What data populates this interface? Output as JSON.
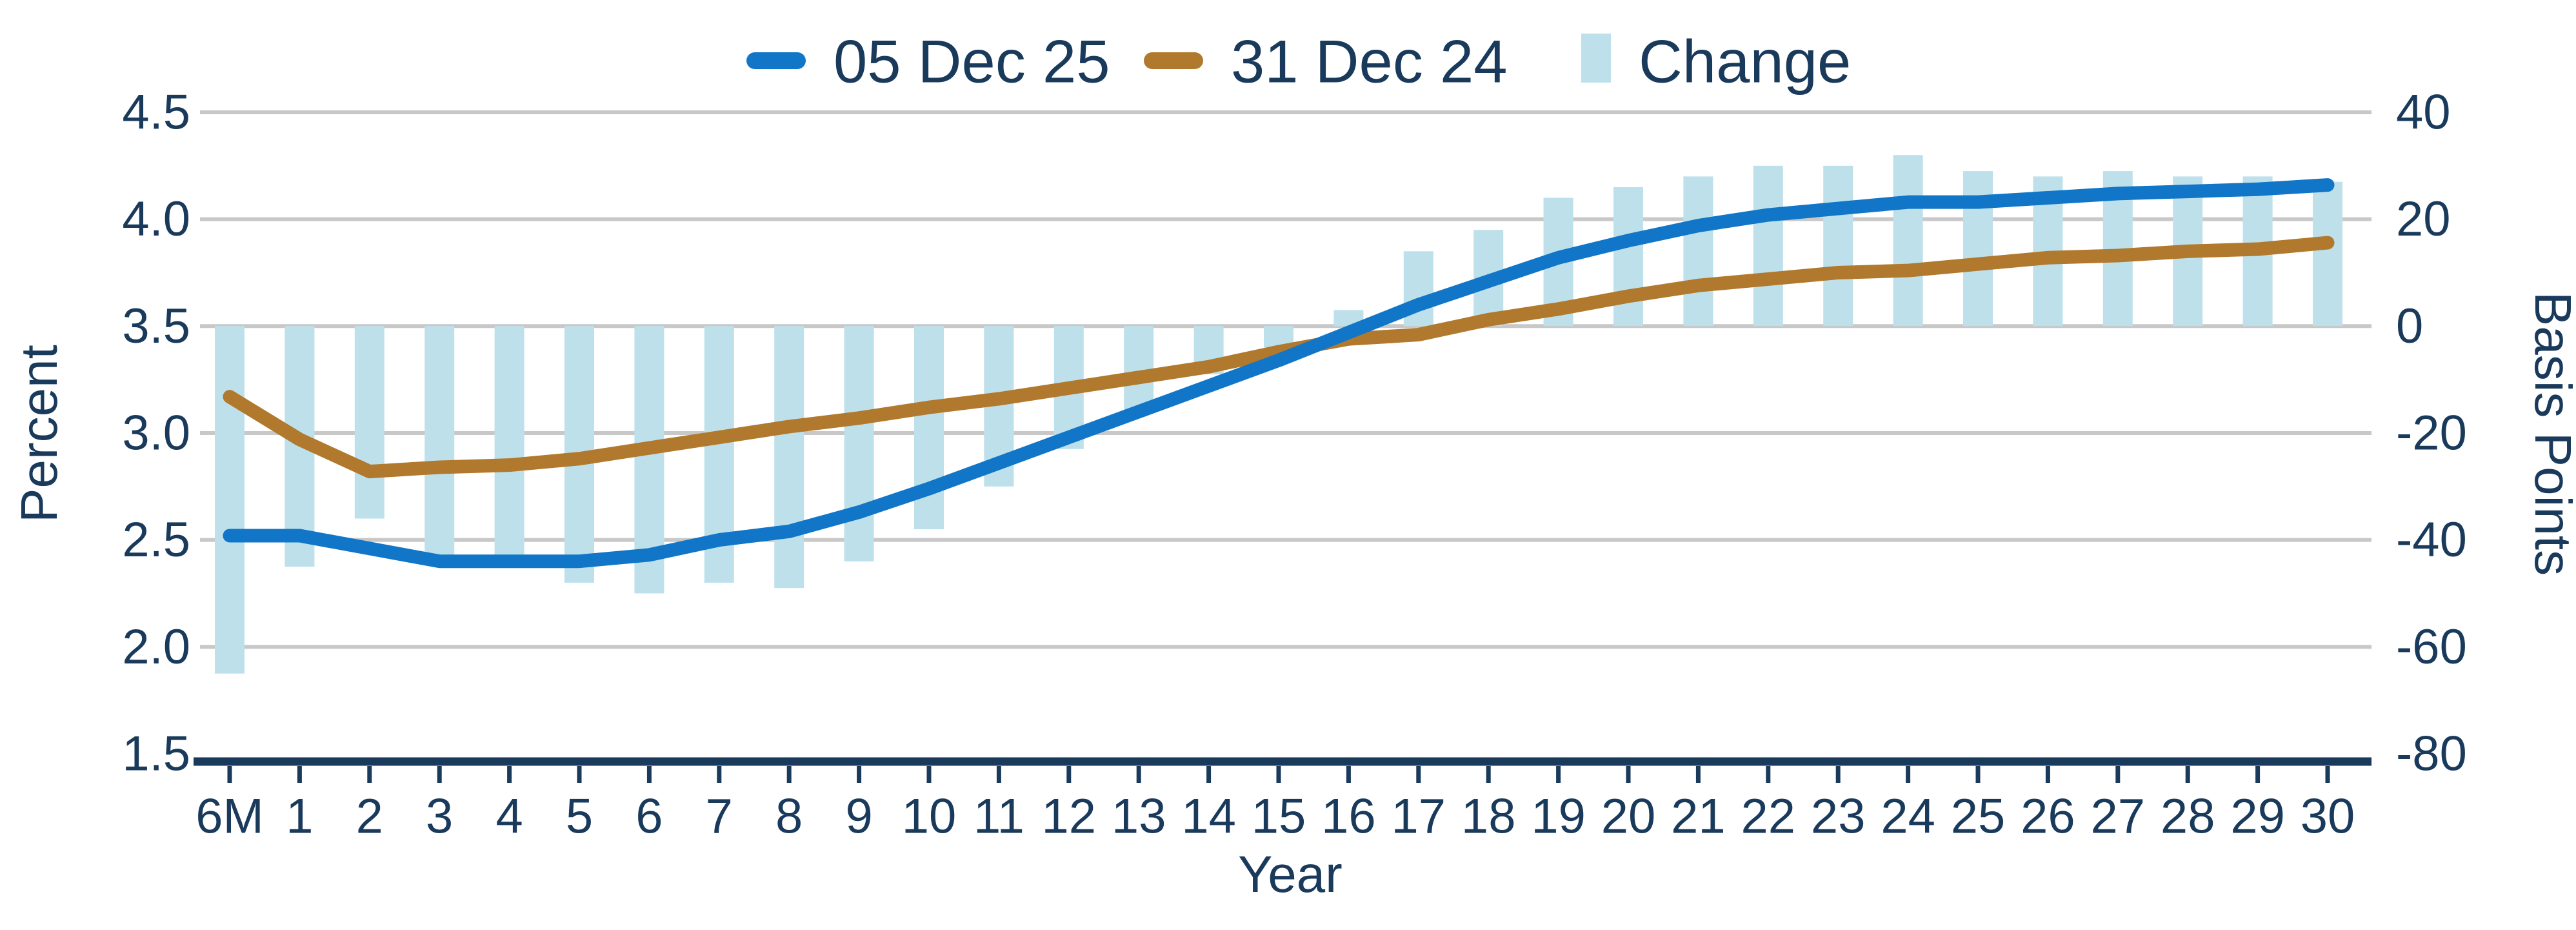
{
  "chart_data": {
    "type": "combo",
    "title": "",
    "xlabel": "Year",
    "categories": [
      "6M",
      "1",
      "2",
      "3",
      "4",
      "5",
      "6",
      "7",
      "8",
      "9",
      "10",
      "11",
      "12",
      "13",
      "14",
      "15",
      "16",
      "17",
      "18",
      "19",
      "20",
      "21",
      "22",
      "23",
      "24",
      "25",
      "26",
      "27",
      "28",
      "29",
      "30"
    ],
    "left_axis": {
      "label": "Percent",
      "min": 1.5,
      "max": 4.5,
      "ticks": [
        "4.5",
        "4.0",
        "3.5",
        "3.0",
        "2.5",
        "2.0",
        "1.5"
      ]
    },
    "right_axis": {
      "label": "Basis Points",
      "min": -80,
      "max": 40,
      "zero_at_percent": 3.5,
      "ticks": [
        "40",
        "20",
        "0",
        "-20",
        "-40",
        "-60",
        "-80"
      ]
    },
    "grid": true,
    "legend_position": "top",
    "series": [
      {
        "name": "05 Dec 25",
        "type": "line",
        "axis": "left",
        "color": "#1176c8",
        "values": [
          2.52,
          2.52,
          2.46,
          2.4,
          2.4,
          2.4,
          2.43,
          2.5,
          2.54,
          2.63,
          2.74,
          2.86,
          2.98,
          3.1,
          3.22,
          3.34,
          3.47,
          3.6,
          3.71,
          3.82,
          3.9,
          3.97,
          4.02,
          4.05,
          4.08,
          4.08,
          4.1,
          4.12,
          4.13,
          4.14,
          4.16
        ]
      },
      {
        "name": "31 Dec 24",
        "type": "line",
        "axis": "left",
        "color": "#b1792d",
        "values": [
          3.17,
          2.97,
          2.82,
          2.84,
          2.85,
          2.88,
          2.93,
          2.98,
          3.03,
          3.07,
          3.12,
          3.16,
          3.21,
          3.26,
          3.31,
          3.38,
          3.44,
          3.46,
          3.53,
          3.58,
          3.64,
          3.69,
          3.72,
          3.75,
          3.76,
          3.79,
          3.82,
          3.83,
          3.85,
          3.86,
          3.89
        ]
      },
      {
        "name": "Change",
        "type": "bar",
        "axis": "right",
        "color": "#bee0eb",
        "values": [
          -65,
          -45,
          -36,
          -44,
          -45,
          -48,
          -50,
          -48,
          -49,
          -44,
          -38,
          -30,
          -23,
          -16,
          -9,
          -4,
          3,
          14,
          18,
          24,
          26,
          28,
          30,
          30,
          32,
          29,
          28,
          29,
          28,
          28,
          27
        ]
      }
    ],
    "colors": {
      "text": "#1a3a5c",
      "gridline": "#c8c8c8",
      "axis": "#1a3a5c",
      "background": "#ffffff"
    }
  }
}
